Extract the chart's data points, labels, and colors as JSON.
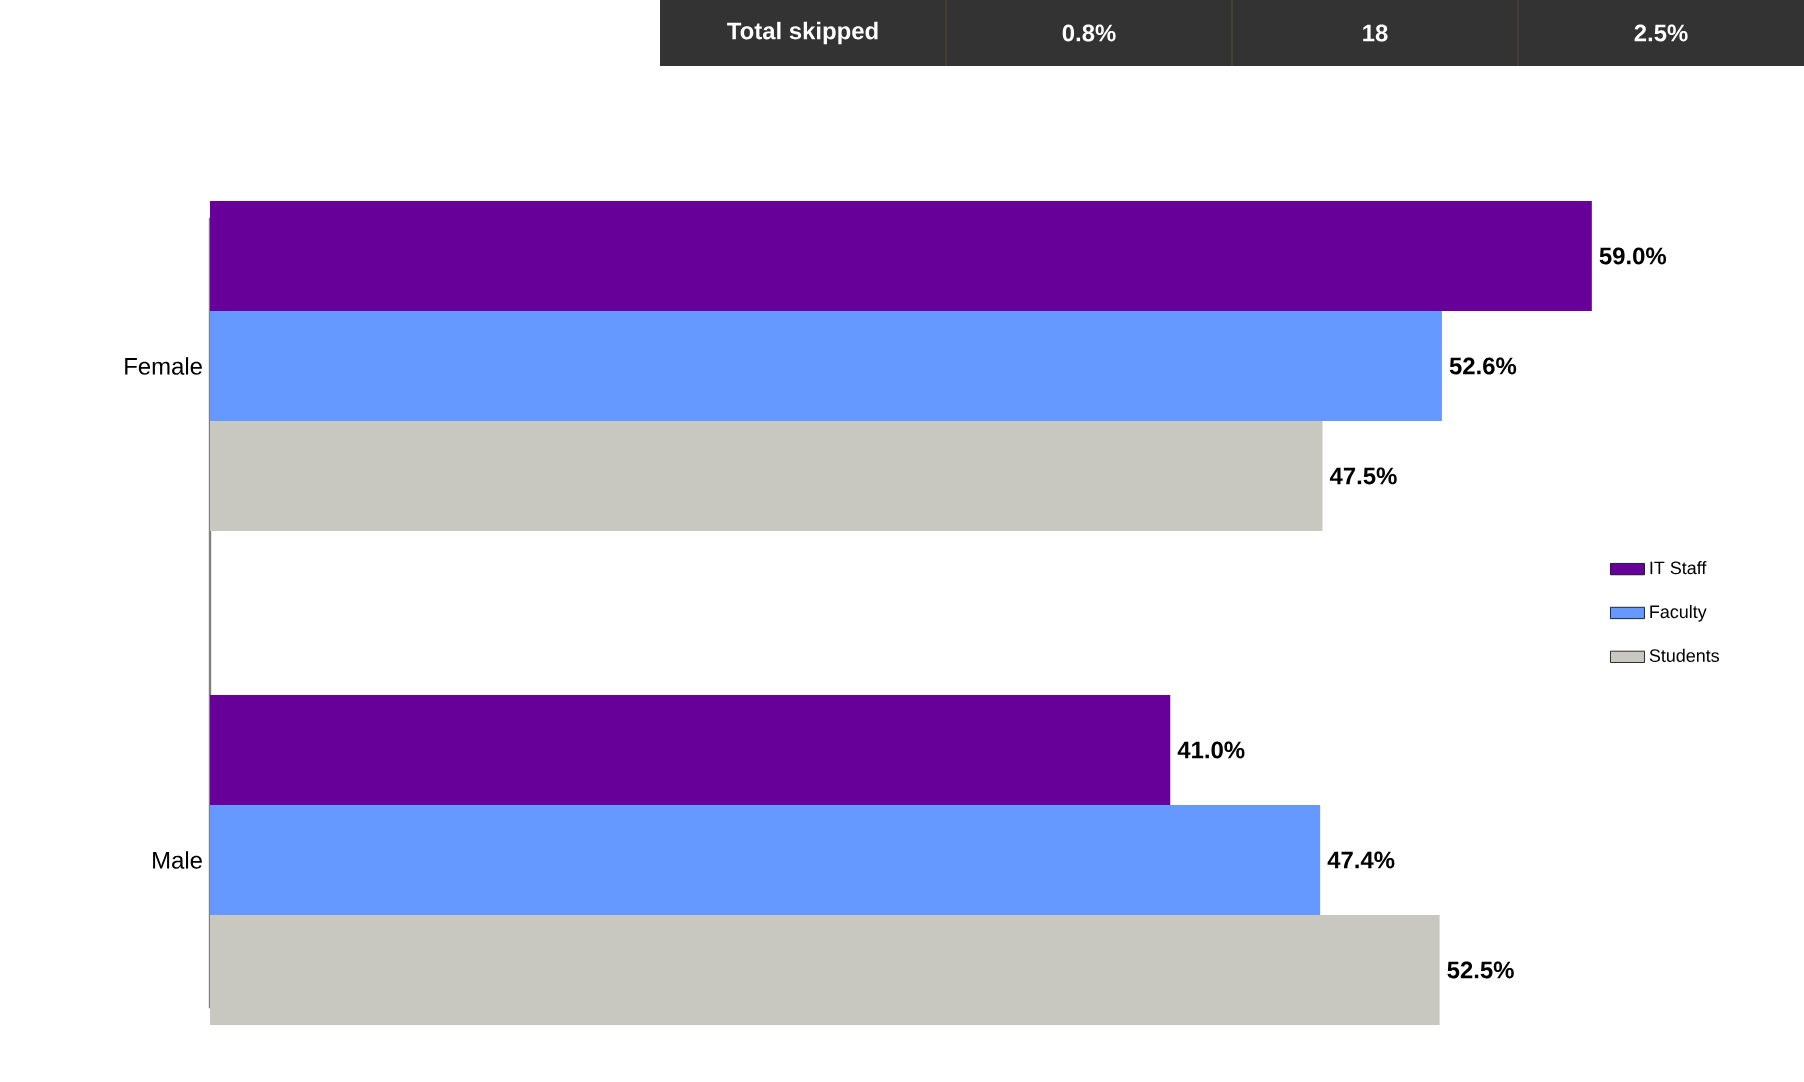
{
  "chart_data": {
    "type": "bar",
    "orientation": "horizontal",
    "categories": [
      "Female",
      "Male"
    ],
    "series": [
      {
        "name": "IT Staff",
        "color": "#660099",
        "values": [
          59.0,
          41.0
        ],
        "value_labels": [
          "59.0%",
          "41.0%"
        ]
      },
      {
        "name": "Faculty",
        "color": "#6699ff",
        "values": [
          52.6,
          47.4
        ],
        "value_labels": [
          "52.6%",
          "47.4%"
        ]
      },
      {
        "name": "Students",
        "color": "#c8c8c0",
        "values": [
          47.5,
          52.5
        ],
        "value_labels": [
          "47.5%",
          "52.5%"
        ]
      }
    ],
    "legend": "right",
    "annotations": [
      "Total skipped",
      "0.8%",
      "18",
      "2.5%"
    ]
  }
}
